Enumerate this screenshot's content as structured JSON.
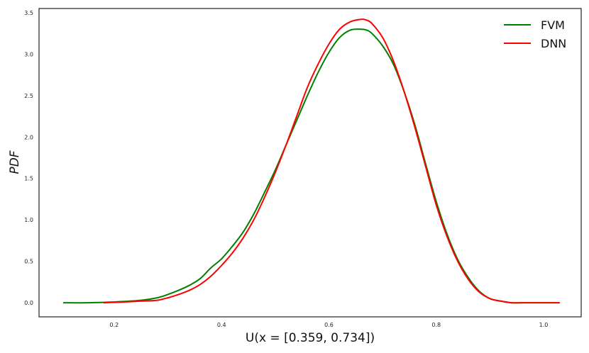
{
  "chart_data": {
    "type": "line",
    "title": "",
    "xlabel": "U(x = [0.359, 0.734])",
    "ylabel": "PDF",
    "xlim": [
      0.06,
      1.07
    ],
    "ylim": [
      -0.17,
      3.55
    ],
    "xticks": [
      0.2,
      0.4,
      0.6,
      0.8,
      1.0
    ],
    "xtick_labels": [
      "0.2",
      "0.4",
      "0.6",
      "0.8",
      "1.0"
    ],
    "yticks": [
      0.0,
      0.5,
      1.0,
      1.5,
      2.0,
      2.5,
      3.0,
      3.5
    ],
    "ytick_labels": [
      "0.0",
      "0.5",
      "1.0",
      "1.5",
      "2.0",
      "2.5",
      "3.0",
      "3.5"
    ],
    "grid": false,
    "legend_position": "top-right",
    "series": [
      {
        "name": "FVM",
        "color": "#008000",
        "x": [
          0.105,
          0.15,
          0.2,
          0.25,
          0.28,
          0.3,
          0.32,
          0.34,
          0.36,
          0.38,
          0.4,
          0.42,
          0.44,
          0.46,
          0.48,
          0.5,
          0.52,
          0.54,
          0.56,
          0.58,
          0.6,
          0.62,
          0.64,
          0.66,
          0.67,
          0.68,
          0.7,
          0.72,
          0.74,
          0.76,
          0.78,
          0.8,
          0.82,
          0.84,
          0.86,
          0.88,
          0.9,
          0.92,
          0.94,
          0.96,
          1.0,
          1.03
        ],
        "y": [
          0.0,
          0.0,
          0.01,
          0.03,
          0.06,
          0.1,
          0.15,
          0.21,
          0.29,
          0.42,
          0.53,
          0.68,
          0.85,
          1.07,
          1.33,
          1.6,
          1.9,
          2.2,
          2.5,
          2.78,
          3.02,
          3.2,
          3.29,
          3.3,
          3.29,
          3.25,
          3.1,
          2.88,
          2.55,
          2.15,
          1.68,
          1.22,
          0.83,
          0.52,
          0.3,
          0.14,
          0.05,
          0.02,
          0.0,
          0.0,
          0.0,
          0.0
        ]
      },
      {
        "name": "DNN",
        "color": "#ff0000",
        "x": [
          0.18,
          0.22,
          0.25,
          0.28,
          0.3,
          0.32,
          0.34,
          0.36,
          0.38,
          0.4,
          0.42,
          0.44,
          0.46,
          0.48,
          0.5,
          0.52,
          0.54,
          0.56,
          0.58,
          0.6,
          0.62,
          0.64,
          0.66,
          0.67,
          0.68,
          0.7,
          0.72,
          0.74,
          0.76,
          0.78,
          0.8,
          0.82,
          0.84,
          0.86,
          0.88,
          0.9,
          0.92,
          0.94,
          0.96,
          1.0,
          1.03
        ],
        "y": [
          0.0,
          0.01,
          0.02,
          0.03,
          0.06,
          0.1,
          0.15,
          0.22,
          0.32,
          0.45,
          0.6,
          0.78,
          1.0,
          1.27,
          1.57,
          1.9,
          2.25,
          2.6,
          2.88,
          3.12,
          3.3,
          3.39,
          3.42,
          3.41,
          3.37,
          3.2,
          2.92,
          2.55,
          2.12,
          1.65,
          1.18,
          0.8,
          0.5,
          0.28,
          0.13,
          0.05,
          0.02,
          0.0,
          0.0,
          0.0,
          0.0
        ]
      }
    ]
  }
}
